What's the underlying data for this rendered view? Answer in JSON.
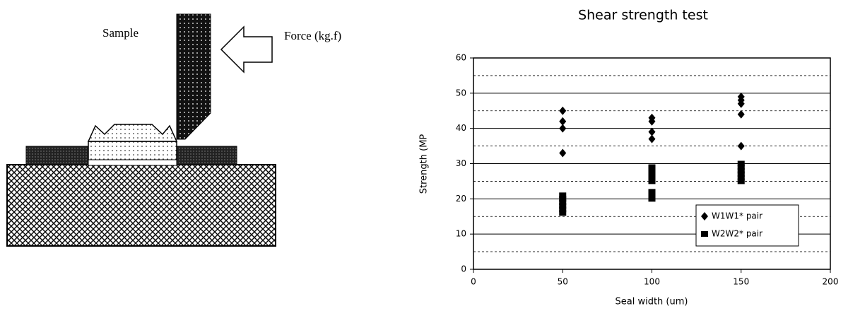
{
  "diagram": {
    "labels": {
      "sample": "Sample",
      "force": "Force (kg.f)"
    }
  },
  "chart_data": {
    "type": "scatter",
    "title": "Shear strength test",
    "x_label": "Seal width (um)",
    "y_label": "Strength (MP",
    "xlim": [
      0,
      200
    ],
    "xticks": [
      0,
      50,
      100,
      150,
      200
    ],
    "ylim": [
      0,
      60
    ],
    "yticks": [
      0,
      10,
      20,
      30,
      40,
      50,
      60
    ],
    "minor_yticks": [
      5,
      15,
      25,
      35,
      45,
      55
    ],
    "grid": true,
    "legend": "lower right",
    "series": [
      {
        "name": "W1W1* pair",
        "marker": "diamond",
        "color": "#000000",
        "x": [
          50,
          50,
          50,
          50,
          100,
          100,
          100,
          100,
          150,
          150,
          150,
          150,
          150
        ],
        "values": [
          45,
          42,
          40,
          33,
          43,
          42,
          39,
          37,
          49,
          48,
          47,
          44,
          35
        ]
      },
      {
        "name": "W2W2* pair",
        "marker": "square",
        "color": "#000000",
        "x": [
          50,
          50,
          50,
          50,
          50,
          50,
          100,
          100,
          100,
          100,
          100,
          100,
          100,
          100,
          150,
          150,
          150,
          150,
          150,
          150
        ],
        "values": [
          21,
          20,
          19,
          18,
          17,
          16,
          29,
          28,
          27,
          26,
          25,
          22,
          21,
          20,
          30,
          29,
          28,
          27,
          26,
          25
        ]
      }
    ]
  }
}
